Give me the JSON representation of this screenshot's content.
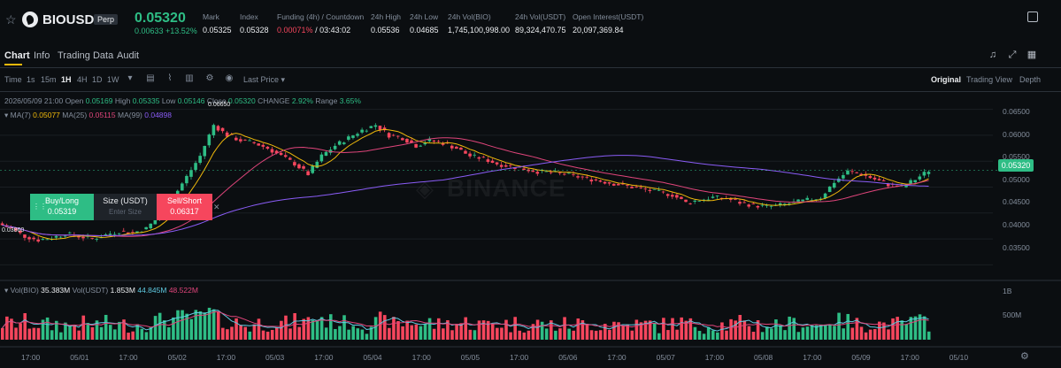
{
  "header": {
    "symbol": "BIOUSDT",
    "contract": "Perp",
    "last_price": "0.05320",
    "change": "0.00633 +13.52%",
    "stats": [
      {
        "label": "Mark",
        "value": "0.05325"
      },
      {
        "label": "Index",
        "value": "0.05328"
      },
      {
        "label": "Funding (4h) / Countdown",
        "rate": "0.00071%",
        "countdown": "/ 03:43:02"
      },
      {
        "label": "24h High",
        "value": "0.05536"
      },
      {
        "label": "24h Low",
        "value": "0.04685"
      },
      {
        "label": "24h Vol(BIO)",
        "value": "1,745,100,998.00"
      },
      {
        "label": "24h Vol(USDT)",
        "value": "89,324,470.75"
      },
      {
        "label": "Open Interest(USDT)",
        "value": "20,097,369.84"
      }
    ]
  },
  "tabs": [
    "Chart",
    "Info",
    "Trading Data",
    "Audit"
  ],
  "toolbar": {
    "time_label": "Time",
    "intervals": [
      "1s",
      "15m",
      "1H",
      "4H",
      "1D",
      "1W"
    ],
    "active_interval": "1H",
    "price_type": "Last Price",
    "views": [
      "Original",
      "Trading View",
      "Depth"
    ],
    "active_view": "Original"
  },
  "ohlc": {
    "datetime": "2026/05/09 21:00",
    "open_label": "Open",
    "open": "0.05169",
    "high_label": "High",
    "high": "0.05335",
    "low_label": "Low",
    "low": "0.05146",
    "close_label": "Close",
    "close": "0.05320",
    "change_label": "CHANGE",
    "change": "2.92%",
    "range_label": "Range",
    "range": "3.65%"
  },
  "ma": {
    "ma7_label": "MA(7)",
    "ma7": "0.05077",
    "ma25_label": "MA(25)",
    "ma25": "0.05115",
    "ma99_label": "MA(99)",
    "ma99": "0.04898"
  },
  "order_widget": {
    "buy_label": "Buy/Long",
    "buy_price": "0.05319",
    "size_label": "Size (USDT)",
    "size_placeholder": "Enter Size",
    "sell_label": "Sell/Short",
    "sell_price": "0.06317"
  },
  "price_axis": [
    "0.06500",
    "0.06000",
    "0.05500",
    "0.05000",
    "0.04500",
    "0.04000",
    "0.03500"
  ],
  "current_price_tag": "0.05320",
  "low_marker": "0.03860",
  "high_marker": "0.06650",
  "watermark": "BINANCE",
  "volume": {
    "vol_bio_label": "Vol(BIO)",
    "vol_bio": "35.383M",
    "vol_usdt_label": "Vol(USDT)",
    "vol_usdt": "1.853M",
    "ma1": "44.845M",
    "ma2": "48.522M",
    "axis": [
      "1B",
      "500M"
    ]
  },
  "time_axis": [
    "17:00",
    "05/01",
    "17:00",
    "05/02",
    "17:00",
    "05/03",
    "17:00",
    "05/04",
    "17:00",
    "05/05",
    "17:00",
    "05/06",
    "17:00",
    "05/07",
    "17:00",
    "05/08",
    "17:00",
    "05/09",
    "17:00",
    "05/10"
  ],
  "colors": {
    "up": "#2ebd85",
    "down": "#f6465d",
    "ma7": "#f0b90b",
    "ma25": "#e0457b",
    "ma99": "#8a5cf6",
    "accent": "#f0b90b"
  },
  "chart_data": {
    "type": "candlestick",
    "interval": "1H",
    "x_start": "04/30 17:00",
    "ylim": [
      0.0325,
      0.0675
    ],
    "close_series_approx": [
      0.043,
      0.042,
      0.0405,
      0.0398,
      0.0402,
      0.041,
      0.0405,
      0.04,
      0.0408,
      0.0415,
      0.0412,
      0.042,
      0.0445,
      0.048,
      0.052,
      0.056,
      0.062,
      0.06,
      0.059,
      0.0585,
      0.0575,
      0.056,
      0.0545,
      0.0525,
      0.056,
      0.058,
      0.0595,
      0.061,
      0.062,
      0.06,
      0.0595,
      0.058,
      0.059,
      0.0585,
      0.0575,
      0.056,
      0.0555,
      0.0545,
      0.054,
      0.0535,
      0.053,
      0.0528,
      0.0525,
      0.052,
      0.0515,
      0.051,
      0.0505,
      0.05,
      0.0495,
      0.049,
      0.0485,
      0.047,
      0.0475,
      0.048,
      0.0478,
      0.047,
      0.0465,
      0.0462,
      0.0465,
      0.047,
      0.0475,
      0.048,
      0.051,
      0.053,
      0.0525,
      0.0515,
      0.0505,
      0.05,
      0.0515,
      0.0532
    ]
  }
}
